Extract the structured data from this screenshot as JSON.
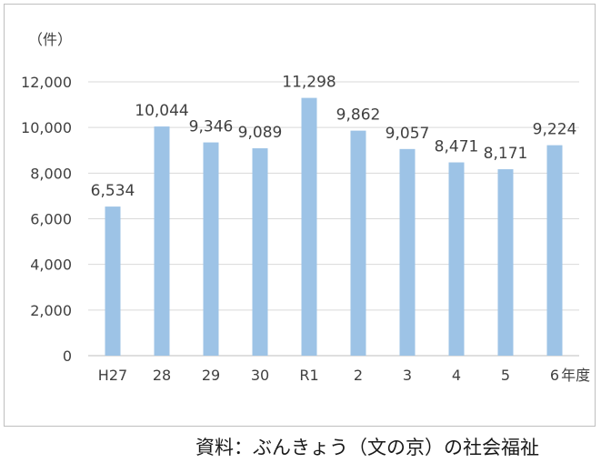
{
  "chart_data": {
    "type": "bar",
    "title": "",
    "unit_label": "（件）",
    "xlabel_suffix": "年度",
    "ylim": [
      0,
      12000
    ],
    "yticks": [
      0,
      2000,
      4000,
      6000,
      8000,
      10000,
      12000
    ],
    "ytick_labels": [
      "0",
      "2,000",
      "4,000",
      "6,000",
      "8,000",
      "10,000",
      "12,000"
    ],
    "categories": [
      "H27",
      "28",
      "29",
      "30",
      "R1",
      "2",
      "3",
      "4",
      "5",
      "6"
    ],
    "values": [
      6534,
      10044,
      9346,
      9089,
      11298,
      9862,
      9057,
      8471,
      8171,
      9224
    ],
    "value_labels": [
      "6,534",
      "10,044",
      "9,346",
      "9,089",
      "11,298",
      "9,862",
      "9,057",
      "8,471",
      "8,171",
      "9,224"
    ],
    "bar_color": "#9dc3e6",
    "grid": true
  },
  "source": "資料：ぶんきょう（文の京）の社会福祉"
}
